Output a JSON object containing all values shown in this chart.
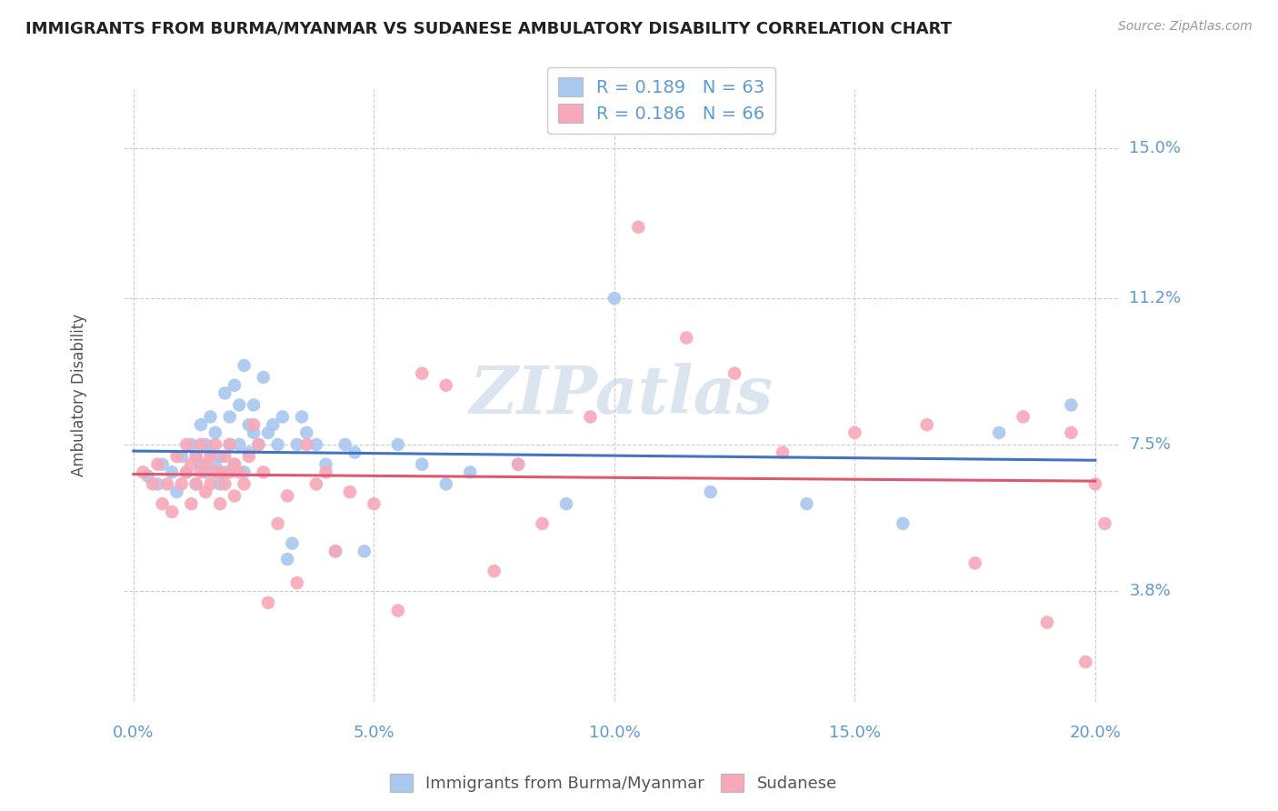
{
  "title": "IMMIGRANTS FROM BURMA/MYANMAR VS SUDANESE AMBULATORY DISABILITY CORRELATION CHART",
  "source": "Source: ZipAtlas.com",
  "xlabel_ticks": [
    "0.0%",
    "5.0%",
    "10.0%",
    "15.0%",
    "20.0%"
  ],
  "xlabel_tick_vals": [
    0.0,
    0.05,
    0.1,
    0.15,
    0.2
  ],
  "ylabel": "Ambulatory Disability",
  "ylabel_ticks": [
    "3.8%",
    "7.5%",
    "11.2%",
    "15.0%"
  ],
  "ylabel_tick_vals": [
    0.038,
    0.075,
    0.112,
    0.15
  ],
  "xlim": [
    -0.002,
    0.205
  ],
  "ylim": [
    0.01,
    0.165
  ],
  "legend_r1": "R = 0.189",
  "legend_n1": "N = 63",
  "legend_r2": "R = 0.186",
  "legend_n2": "N = 66",
  "color_blue": "#A8C8F0",
  "color_pink": "#F8A8B8",
  "line_color_blue": "#4472C4",
  "line_color_pink": "#E05870",
  "watermark": "ZIPatlas",
  "background_color": "#FFFFFF",
  "grid_color": "#CCCCCC",
  "label_color": "#5B9BD5",
  "blue_scatter_x": [
    0.003,
    0.005,
    0.006,
    0.008,
    0.009,
    0.01,
    0.011,
    0.012,
    0.013,
    0.013,
    0.014,
    0.014,
    0.015,
    0.015,
    0.016,
    0.016,
    0.017,
    0.017,
    0.018,
    0.018,
    0.019,
    0.019,
    0.02,
    0.02,
    0.021,
    0.021,
    0.022,
    0.022,
    0.023,
    0.023,
    0.024,
    0.024,
    0.025,
    0.025,
    0.026,
    0.027,
    0.028,
    0.029,
    0.03,
    0.031,
    0.032,
    0.033,
    0.034,
    0.035,
    0.036,
    0.038,
    0.04,
    0.042,
    0.044,
    0.046,
    0.048,
    0.055,
    0.06,
    0.065,
    0.07,
    0.08,
    0.09,
    0.1,
    0.12,
    0.14,
    0.16,
    0.18,
    0.195
  ],
  "blue_scatter_y": [
    0.067,
    0.065,
    0.07,
    0.068,
    0.063,
    0.072,
    0.068,
    0.075,
    0.065,
    0.072,
    0.07,
    0.08,
    0.068,
    0.075,
    0.073,
    0.082,
    0.07,
    0.078,
    0.065,
    0.072,
    0.068,
    0.088,
    0.075,
    0.082,
    0.07,
    0.09,
    0.075,
    0.085,
    0.068,
    0.095,
    0.073,
    0.08,
    0.078,
    0.085,
    0.075,
    0.092,
    0.078,
    0.08,
    0.075,
    0.082,
    0.046,
    0.05,
    0.075,
    0.082,
    0.078,
    0.075,
    0.07,
    0.048,
    0.075,
    0.073,
    0.048,
    0.075,
    0.07,
    0.065,
    0.068,
    0.07,
    0.06,
    0.112,
    0.063,
    0.06,
    0.055,
    0.078,
    0.085
  ],
  "pink_scatter_x": [
    0.002,
    0.004,
    0.005,
    0.006,
    0.007,
    0.008,
    0.009,
    0.01,
    0.011,
    0.011,
    0.012,
    0.012,
    0.013,
    0.013,
    0.014,
    0.014,
    0.015,
    0.015,
    0.016,
    0.016,
    0.017,
    0.017,
    0.018,
    0.018,
    0.019,
    0.019,
    0.02,
    0.02,
    0.021,
    0.021,
    0.022,
    0.023,
    0.024,
    0.025,
    0.026,
    0.027,
    0.028,
    0.03,
    0.032,
    0.034,
    0.036,
    0.038,
    0.04,
    0.042,
    0.045,
    0.05,
    0.055,
    0.06,
    0.065,
    0.075,
    0.08,
    0.085,
    0.095,
    0.105,
    0.115,
    0.125,
    0.135,
    0.15,
    0.165,
    0.175,
    0.185,
    0.19,
    0.195,
    0.198,
    0.2,
    0.202
  ],
  "pink_scatter_y": [
    0.068,
    0.065,
    0.07,
    0.06,
    0.065,
    0.058,
    0.072,
    0.065,
    0.068,
    0.075,
    0.06,
    0.07,
    0.065,
    0.072,
    0.068,
    0.075,
    0.063,
    0.07,
    0.065,
    0.072,
    0.068,
    0.075,
    0.06,
    0.068,
    0.065,
    0.072,
    0.068,
    0.075,
    0.062,
    0.07,
    0.068,
    0.065,
    0.072,
    0.08,
    0.075,
    0.068,
    0.035,
    0.055,
    0.062,
    0.04,
    0.075,
    0.065,
    0.068,
    0.048,
    0.063,
    0.06,
    0.033,
    0.093,
    0.09,
    0.043,
    0.07,
    0.055,
    0.082,
    0.13,
    0.102,
    0.093,
    0.073,
    0.078,
    0.08,
    0.045,
    0.082,
    0.03,
    0.078,
    0.02,
    0.065,
    0.055
  ]
}
